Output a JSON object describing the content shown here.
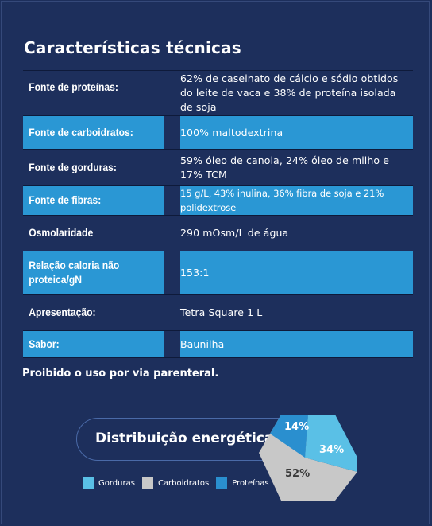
{
  "title": "Características técnicas",
  "specs": [
    {
      "label": "Fonte de proteínas:",
      "value": "62% de caseinato de cálcio e sódio obtidos do leite de vaca e 38% de proteína isolada de soja"
    },
    {
      "label": "Fonte de carboidratos:",
      "value": "100% maltodextrina"
    },
    {
      "label": "Fonte de gorduras:",
      "value": "59% óleo de canola, 24% óleo de milho e 17% TCM"
    },
    {
      "label": "Fonte de fibras:",
      "value": "15 g/L, 43% inulina, 36% fibra de soja e 21% polidextrose"
    },
    {
      "label": "Osmolaridade",
      "value": "290 mOsm/L de água"
    },
    {
      "label": "Relação caloria não proteica/gN",
      "value": "153:1"
    },
    {
      "label": "Apresentação:",
      "value": "Tetra Square 1 L"
    },
    {
      "label": "Sabor:",
      "value": "Baunilha"
    }
  ],
  "notice": "Proibido o uso por via parenteral.",
  "energy": {
    "heading": "Distribuição energética",
    "legend": [
      {
        "name": "Gorduras",
        "color": "#5ac0e6"
      },
      {
        "name": "Carboidratos",
        "color": "#c8c8c8"
      },
      {
        "name": "Proteínas",
        "color": "#2a8fcf"
      }
    ],
    "slices": [
      {
        "name": "Proteínas",
        "value": 14,
        "label": "14%",
        "color": "#2a8fcf"
      },
      {
        "name": "Gorduras",
        "value": 34,
        "label": "34%",
        "color": "#5ac0e6"
      },
      {
        "name": "Carboidratos",
        "value": 52,
        "label": "52%",
        "color": "#c8c8c8"
      }
    ]
  },
  "colors": {
    "background": "#1d2f5c",
    "row_dark": "#1d2f5c",
    "row_light": "#2a97d4"
  }
}
